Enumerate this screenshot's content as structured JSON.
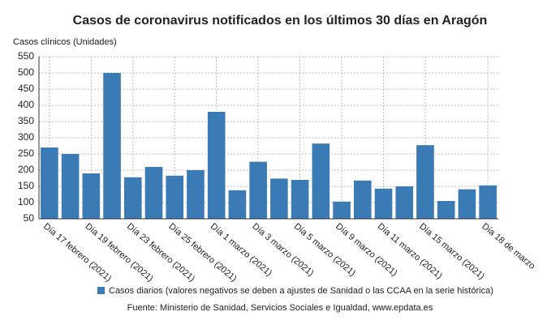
{
  "chart_data": {
    "type": "bar",
    "title": "Casos de coronavirus notificados en los últimos 30 días en Aragón",
    "y_label": "Casos clínicos (Unidades)",
    "categories": [
      "Día 17 febrero (2021)",
      null,
      "Día 19 febrero (2021)",
      null,
      "Día 23 febrero (2021)",
      null,
      "Día 25 febrero (2021)",
      null,
      "Día 1 marzo (2021)",
      null,
      "Día 3 marzo (2021)",
      null,
      "Día 5 marzo (2021)",
      null,
      "Día 9 marzo (2021)",
      null,
      "Día 11 marzo (2021)",
      null,
      "Día 15 marzo (2021)",
      null,
      null,
      "Día 18 de marzo"
    ],
    "series": [
      {
        "name": "Casos diarios (valores negativos se deben a ajustes de Sanidad o las CCAA en la serie histórica)",
        "color": "#3a7ab5",
        "values": [
          270,
          250,
          190,
          500,
          178,
          210,
          183,
          200,
          380,
          138,
          226,
          174,
          170,
          282,
          103,
          168,
          143,
          150,
          277,
          105,
          141,
          153
        ]
      }
    ],
    "ylim": [
      50,
      550
    ],
    "yticks": [
      50,
      100,
      150,
      200,
      250,
      300,
      350,
      400,
      450,
      500,
      550
    ],
    "grid": true,
    "source": "Fuente: Ministerio de Sanidad, Servicios Sociales e Igualdad, www.epdata.es"
  }
}
